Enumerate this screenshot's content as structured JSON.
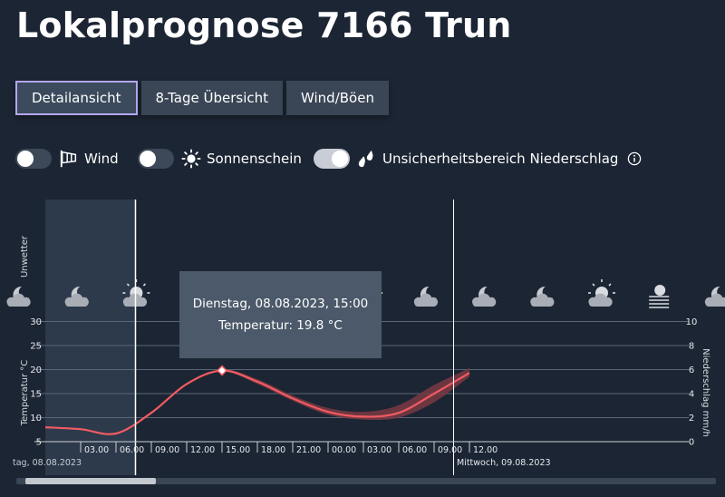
{
  "page": {
    "title": "Lokalprognose 7166 Trun"
  },
  "tabs": [
    {
      "label": "Detailansicht",
      "active": true
    },
    {
      "label": "8-Tage Übersicht",
      "active": false
    },
    {
      "label": "Wind/Böen",
      "active": false
    }
  ],
  "toggles": [
    {
      "label": "Wind",
      "icon": "windsock-icon",
      "state": "off"
    },
    {
      "label": "Sonnenschein",
      "icon": "sun-icon",
      "state": "off"
    },
    {
      "label": "Unsicherheitsbereich Niederschlag",
      "icon": "raindrops-icon",
      "state": "on"
    }
  ],
  "colors": {
    "background": "#1c2533",
    "temperature_line": "#f15b63",
    "temperature_band": "#7a3a44",
    "tab_active_border": "#b4a6f0",
    "tooltip_bg": "#4b596a"
  },
  "tooltip": {
    "date": "Dienstag, 08.08.2023, 15:00",
    "value": "Temperatur: 19.8 °C"
  },
  "chart_data": {
    "type": "line",
    "ylabel": "Temperatur °C",
    "y2label": "Niederschlag mm/h",
    "unwetter_label": "Unwetter",
    "ylim": [
      5,
      30
    ],
    "y_ticks": [
      "5",
      "10",
      "15",
      "20",
      "25",
      "30"
    ],
    "y2lim": [
      0,
      10
    ],
    "y2_ticks": [
      "0",
      "2",
      "4",
      "6",
      "8",
      "10"
    ],
    "x_ticks": [
      "03.00",
      "06.00",
      "09.00",
      "12.00",
      "15.00",
      "18.00",
      "21.00",
      "00.00",
      "03.00",
      "06.00",
      "09.00",
      "12.00"
    ],
    "day_labels": [
      "tag, 08.08.2023",
      "Mittwoch, 09.08.2023"
    ],
    "grid": true,
    "series": [
      {
        "name": "Temperatur",
        "x_hours": [
          0,
          3,
          6,
          9,
          12,
          15,
          18,
          21,
          24,
          27,
          30,
          33,
          36
        ],
        "values": [
          8.0,
          7.6,
          6.7,
          11.0,
          17.0,
          19.8,
          17.5,
          14.0,
          11.2,
          10.2,
          11.0,
          15.0,
          19.3
        ]
      }
    ],
    "uncertainty_band": {
      "x_hours": [
        0,
        3,
        6,
        9,
        12,
        15,
        18,
        21,
        24,
        27,
        30,
        33,
        36
      ],
      "low": [
        8.0,
        7.6,
        6.7,
        11.0,
        17.0,
        19.6,
        17.0,
        13.5,
        10.6,
        9.6,
        10.0,
        13.2,
        18.5
      ],
      "high": [
        8.0,
        7.6,
        6.7,
        11.0,
        17.0,
        20.0,
        18.0,
        14.6,
        12.0,
        11.2,
        12.6,
        16.8,
        20.3
      ]
    },
    "highlight_point": {
      "x_hour": 15,
      "y": 19.8
    },
    "weather_icons": [
      "cloud-moon-icon",
      "cloud-moon-icon",
      "cloud-sun-icon",
      "cloud-sun-icon",
      "cloud-sun-icon",
      "cloud-sun-icon",
      "cloud-sun-icon",
      "cloud-moon-icon",
      "cloud-moon-icon",
      "cloud-moon-icon",
      "cloud-sun-icon",
      "fog-sun-icon",
      "cloud-moon-icon"
    ]
  }
}
